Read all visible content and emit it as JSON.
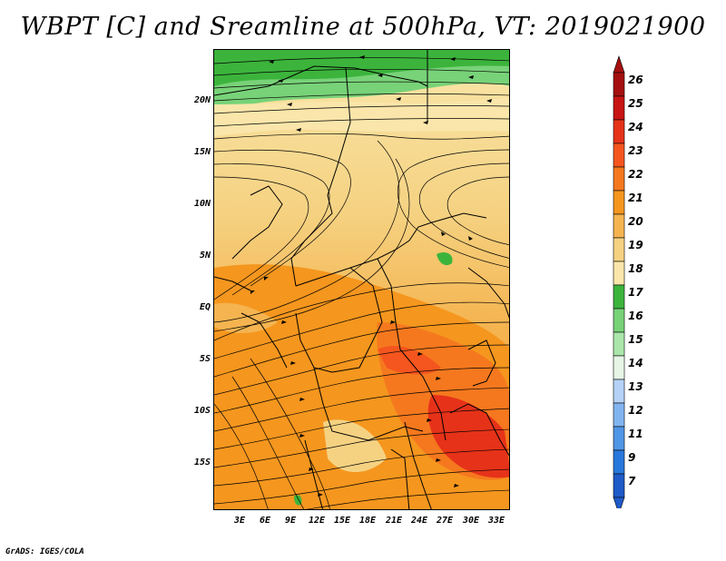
{
  "title": "WBPT [C] and Sreamline at 500hPa, VT: 2019021900",
  "credit": "GrADS: IGES/COLA",
  "axes": {
    "lat_labels": [
      "20N",
      "15N",
      "10N",
      "5N",
      "EQ",
      "5S",
      "10S",
      "15S"
    ],
    "lon_labels": [
      "3E",
      "6E",
      "9E",
      "12E",
      "15E",
      "18E",
      "21E",
      "24E",
      "27E",
      "30E",
      "33E"
    ]
  },
  "colorbar": {
    "labels": [
      "26",
      "25",
      "24",
      "23",
      "22",
      "21",
      "20",
      "19",
      "18",
      "17",
      "16",
      "15",
      "14",
      "13",
      "12",
      "11",
      "9",
      "7"
    ],
    "colors": [
      "#a50f0f",
      "#c81414",
      "#e63219",
      "#f5551e",
      "#f5781e",
      "#f5961e",
      "#f5b450",
      "#f5d282",
      "#fae6aa",
      "#3cb43c",
      "#78d278",
      "#aae6aa",
      "#e6f5e6",
      "#b4d2f5",
      "#82b4f0",
      "#5096e6",
      "#2878dc",
      "#1e5ac8"
    ]
  }
}
